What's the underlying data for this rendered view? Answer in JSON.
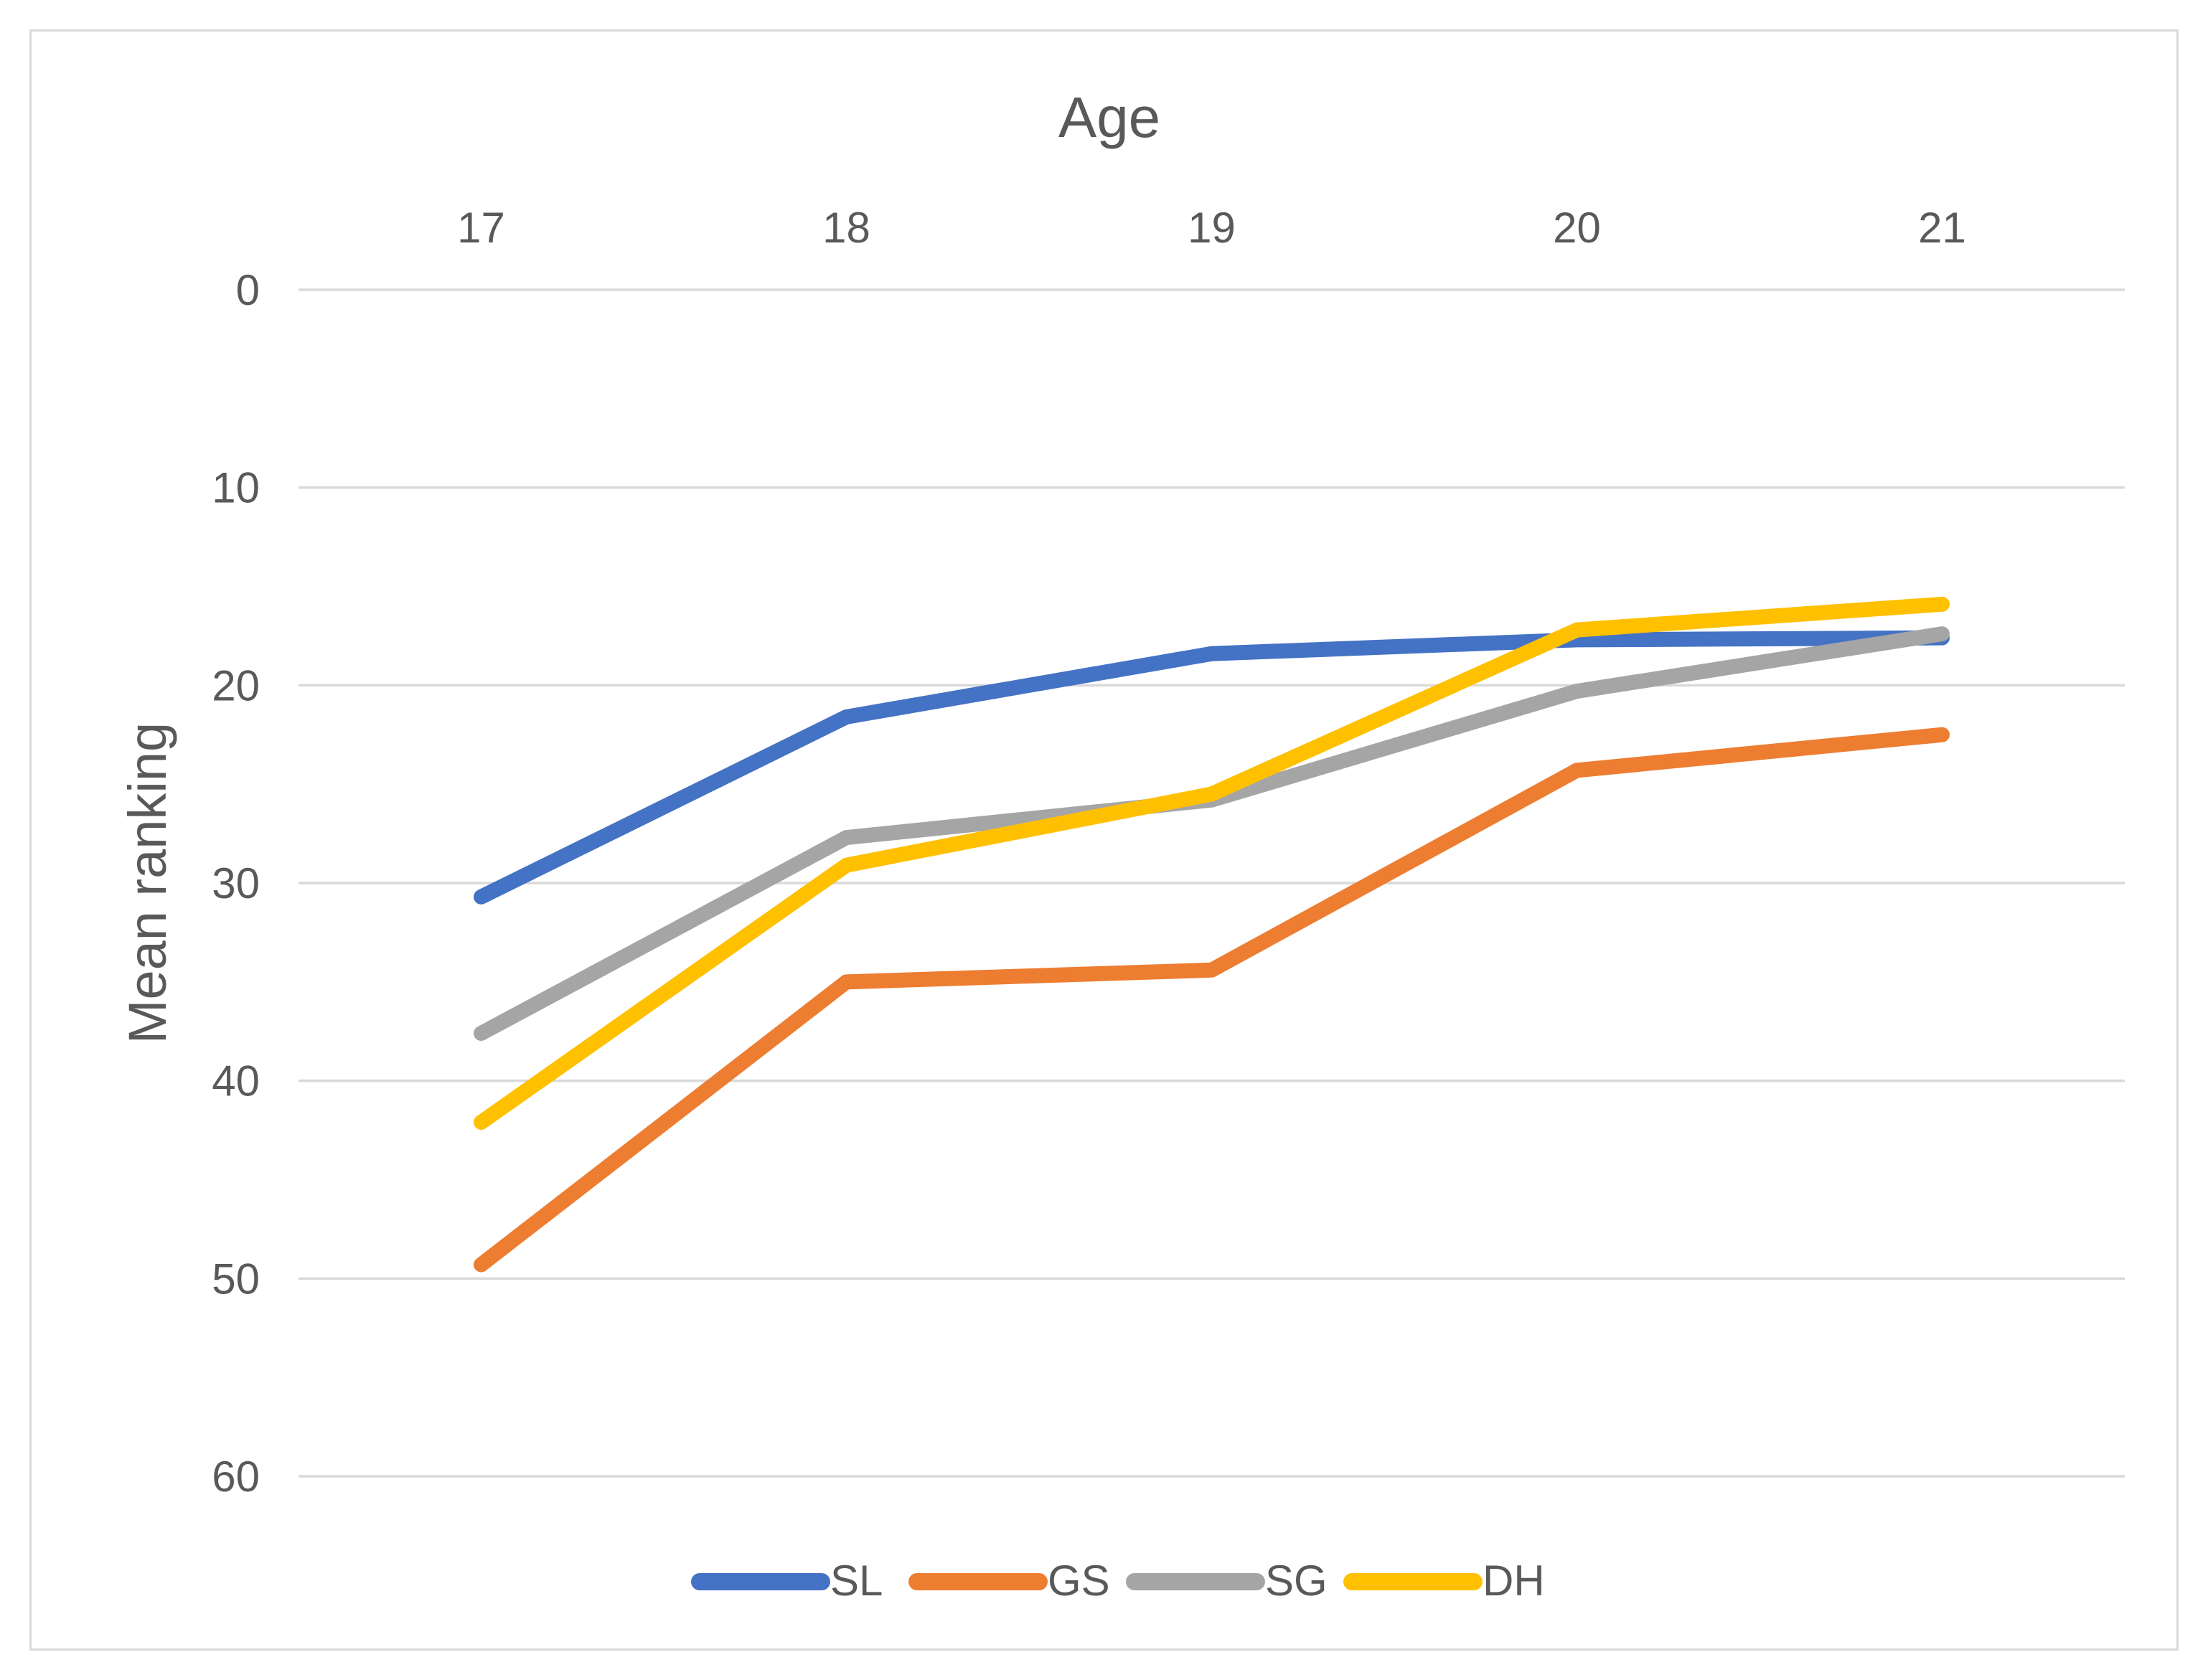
{
  "chart_data": {
    "type": "line",
    "title": "Age",
    "xlabel": "Age",
    "ylabel": "Mean ranking",
    "categories": [
      "17",
      "18",
      "19",
      "20",
      "21"
    ],
    "series": [
      {
        "name": "SL",
        "color": "#4472C4",
        "values": [
          30.7,
          21.6,
          18.4,
          17.7,
          17.6
        ]
      },
      {
        "name": "GS",
        "color": "#ED7D31",
        "values": [
          49.3,
          35.0,
          34.4,
          24.3,
          22.5
        ]
      },
      {
        "name": "SG",
        "color": "#A5A5A5",
        "values": [
          37.6,
          27.7,
          25.8,
          20.3,
          17.4
        ]
      },
      {
        "name": "DH",
        "color": "#FFC000",
        "values": [
          42.1,
          29.1,
          25.5,
          17.2,
          15.9
        ]
      }
    ],
    "y_ticks": [
      0,
      10,
      20,
      30,
      40,
      50,
      60
    ],
    "ylim": [
      0,
      60
    ],
    "y_axis_inverted": true,
    "grid": "horizontal-only",
    "legend_position": "bottom-center",
    "legend_labels": [
      "SL",
      "GS",
      "SG",
      "DH"
    ],
    "colors": {
      "text": "#595959",
      "gridline": "#D9D9D9",
      "frame_border": "#D9D9D9",
      "background": "#FFFFFF"
    }
  }
}
